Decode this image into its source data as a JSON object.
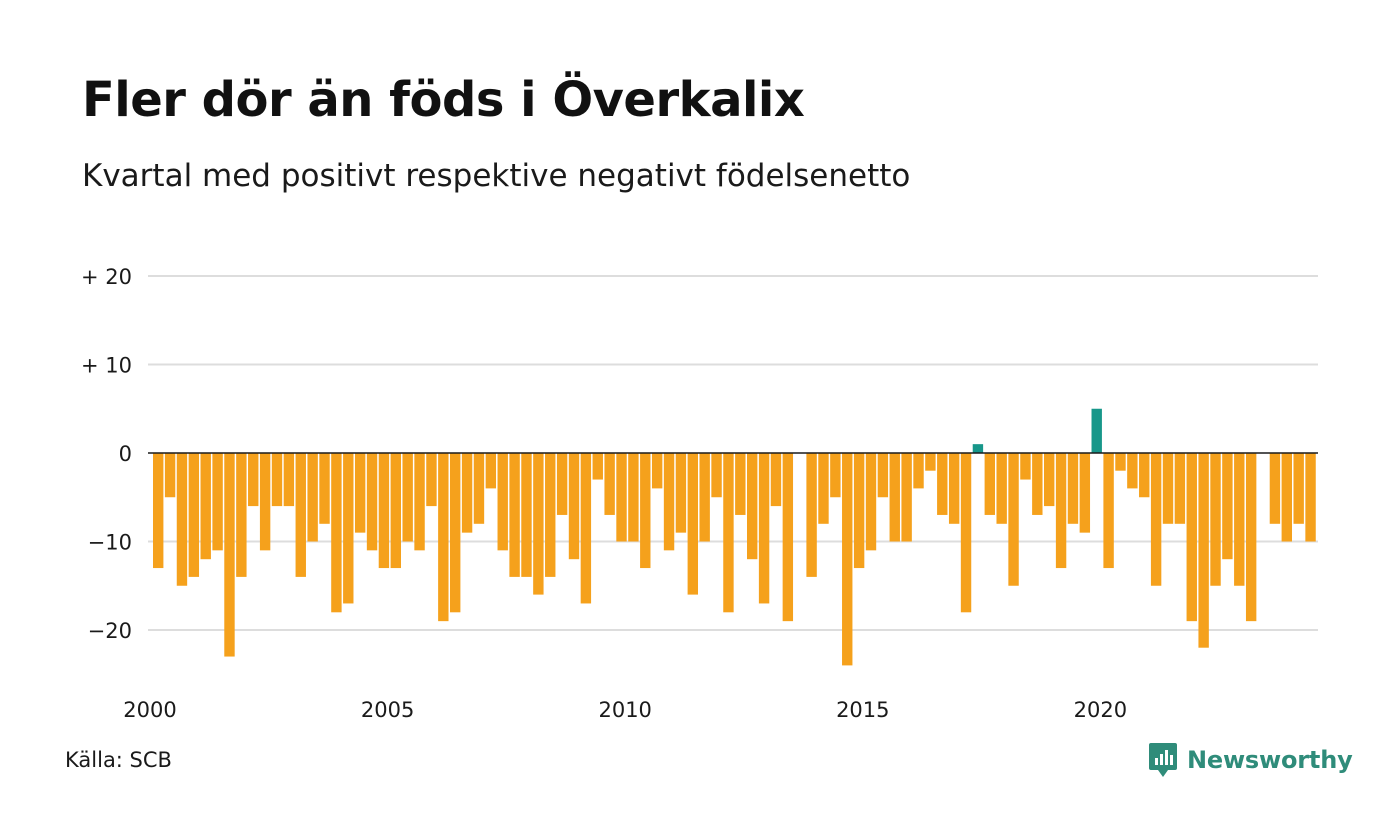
{
  "chart_data": {
    "type": "bar",
    "title": "Fler dör än föds i Överkalix",
    "subtitle": "Kvartal med positivt respektive negativt födelsenetto",
    "ylim": [
      -25,
      20
    ],
    "y_ticks": [
      {
        "value": 20,
        "label": "+ 20"
      },
      {
        "value": 10,
        "label": "+ 10"
      },
      {
        "value": 0,
        "label": "0"
      },
      {
        "value": -10,
        "label": "−10"
      },
      {
        "value": -20,
        "label": "−20"
      }
    ],
    "x_ticks": [
      "2000",
      "2005",
      "2010",
      "2015",
      "2020"
    ],
    "grid": true,
    "colors": {
      "positive": "#17978a",
      "negative": "#f5a11c"
    },
    "start": "2000 Q1",
    "frequency": "quarterly",
    "values": [
      -13,
      -5,
      -15,
      -14,
      -12,
      -11,
      -23,
      -14,
      -6,
      -11,
      -6,
      -6,
      -14,
      -10,
      -8,
      -18,
      -17,
      -9,
      -11,
      -13,
      -13,
      -10,
      -11,
      -6,
      -19,
      -18,
      -9,
      -8,
      -4,
      -11,
      -14,
      -14,
      -16,
      -14,
      -7,
      -12,
      -17,
      -3,
      -7,
      -10,
      -10,
      -13,
      -4,
      -11,
      -9,
      -16,
      -10,
      -5,
      -18,
      -7,
      -12,
      -17,
      -6,
      -19,
      0,
      -14,
      -8,
      -5,
      -24,
      -13,
      -11,
      -5,
      -10,
      -10,
      -4,
      -2,
      -7,
      -8,
      -18,
      1,
      -7,
      -8,
      -15,
      -3,
      -7,
      -6,
      -13,
      -8,
      -9,
      5,
      -13,
      -2,
      -4,
      -5,
      -15,
      -8,
      -8,
      -19,
      -22,
      -15,
      -12,
      -15,
      -19,
      0,
      -8,
      -10,
      -8,
      -10
    ]
  },
  "source": "Källa: SCB",
  "brand": "Newsworthy"
}
